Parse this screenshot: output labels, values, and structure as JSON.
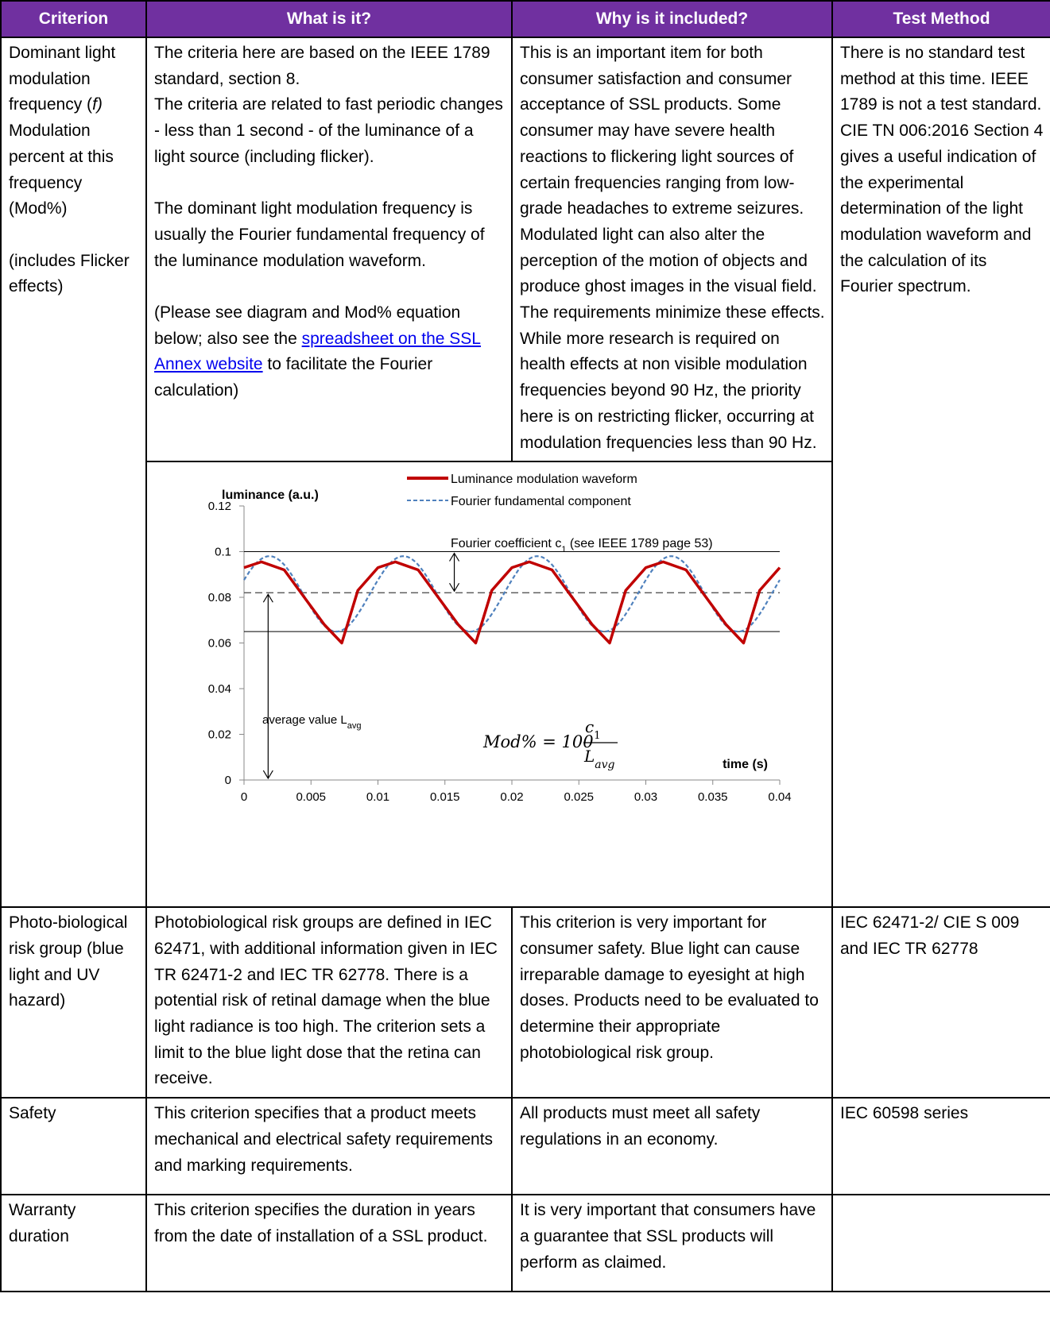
{
  "headers": [
    "Criterion",
    "What is it?",
    "Why is it included?",
    "Test Method"
  ],
  "row1": {
    "criterion": {
      "line_a": "Dominant light modulation frequency (",
      "f": "f",
      "line_b": ")",
      "line_c": "Modulation percent at this frequency (Mod%)",
      "line_d": "(includes Flicker effects)"
    },
    "what": {
      "p1": "The criteria here are based on the IEEE 1789 standard, section 8.",
      "p2": "The criteria are related to fast periodic changes - less than 1 second - of the luminance of a light source (including flicker).",
      "p3": "The dominant light modulation frequency is usually the Fourier fundamental frequency of the luminance modulation waveform.",
      "p4_pre": "(Please see diagram and Mod% equation below; also see the ",
      "p4_link": "spreadsheet on the SSL Annex website",
      "p4_post": " to facilitate the Fourier calculation)"
    },
    "why": "This is an important item for both consumer satisfaction and consumer acceptance of SSL products. Some consumer may have severe health reactions to flickering light sources of certain frequencies ranging from low-grade headaches to extreme seizures. Modulated light can also alter the perception of the motion of objects and produce ghost images in the visual field. The requirements minimize these effects. While more research is required on health effects at non visible modulation frequencies beyond 90 Hz, the priority here is on restricting flicker, occurring at modulation  frequencies less than 90 Hz.",
    "test": {
      "p1": "There is no standard test method at this time. IEEE 1789 is not a test standard.",
      "p2": "CIE TN 006:2016 Section 4 gives a useful indication of the experimental determination of the light modulation waveform and the calculation of its Fourier spectrum."
    }
  },
  "chart_data": {
    "type": "line",
    "ylabel": "luminance (a.u.)",
    "xlabel": "time (s)",
    "xlim": [
      0,
      0.04
    ],
    "ylim": [
      0,
      0.12
    ],
    "x_ticks": [
      "0",
      "0.005",
      "0.01",
      "0.015",
      "0.02",
      "0.025",
      "0.03",
      "0.035",
      "0.04"
    ],
    "y_ticks": [
      "0",
      "0.02",
      "0.04",
      "0.06",
      "0.08",
      "0.1",
      "0.12"
    ],
    "grid": false,
    "legend": "top-center",
    "series": [
      {
        "name": "Luminance modulation waveform",
        "color": "#c00000",
        "style": "solid",
        "period": 0.01,
        "x_min_phase": 0.0073,
        "x": [
          0,
          0.0013,
          0.003,
          0.0045,
          0.006,
          0.0073,
          0.0085,
          0.01,
          0.0113
        ],
        "y": [
          0.093,
          0.0955,
          0.092,
          0.08,
          0.068,
          0.06,
          0.083,
          0.093,
          0.0955
        ]
      },
      {
        "name": "Fourier fundamental component",
        "color": "#4f81bd",
        "style": "dashed",
        "mean": 0.0815,
        "amplitude": 0.0165,
        "frequency_hz": 100,
        "x_max": 0.0019,
        "x": [
          0,
          0.0019,
          0.0069,
          0.0119
        ],
        "y": [
          0.0965,
          0.098,
          0.065,
          0.098
        ]
      }
    ],
    "reference_lines": {
      "upper": 0.1,
      "average": 0.082,
      "lower": 0.065
    },
    "annotations": {
      "coef_pre": "Fourier  coefficient c",
      "coef_sub": "1",
      "coef_post": " (see IEEE 1789 page 53)",
      "avg_pre": "average value L",
      "avg_sub": "avg",
      "eq_lhs": "Mod% = 100",
      "eq_num": "c",
      "eq_num_sub": "1",
      "eq_den": "L",
      "eq_den_sub": "avg"
    }
  },
  "row2": {
    "criterion": "Photo-biological risk group  (blue light and UV hazard)",
    "what": "Photobiological risk groups are defined in IEC 62471, with additional information given in IEC TR 62471-2 and IEC TR 62778. There is a potential risk of retinal damage when the blue light radiance is too high. The criterion sets a limit to the blue light dose that the retina can receive.",
    "why": "This criterion is very important for consumer safety. Blue light can cause irreparable damage to eyesight at high doses. Products need to be evaluated to determine their appropriate photobiological risk group.",
    "test": "IEC 62471-2/ CIE S 009 and IEC TR 62778"
  },
  "row3": {
    "criterion": "Safety",
    "what": "This criterion specifies that a product meets mechanical and electrical safety requirements and marking requirements.",
    "why": "All products must meet all safety regulations in an economy.",
    "test": "IEC 60598 series"
  },
  "row4": {
    "criterion": "Warranty duration",
    "what": "This criterion specifies the duration in years from the date of installation of a SSL product.",
    "why": "It is very important that consumers have a guarantee that SSL products will perform as claimed.",
    "test": ""
  }
}
